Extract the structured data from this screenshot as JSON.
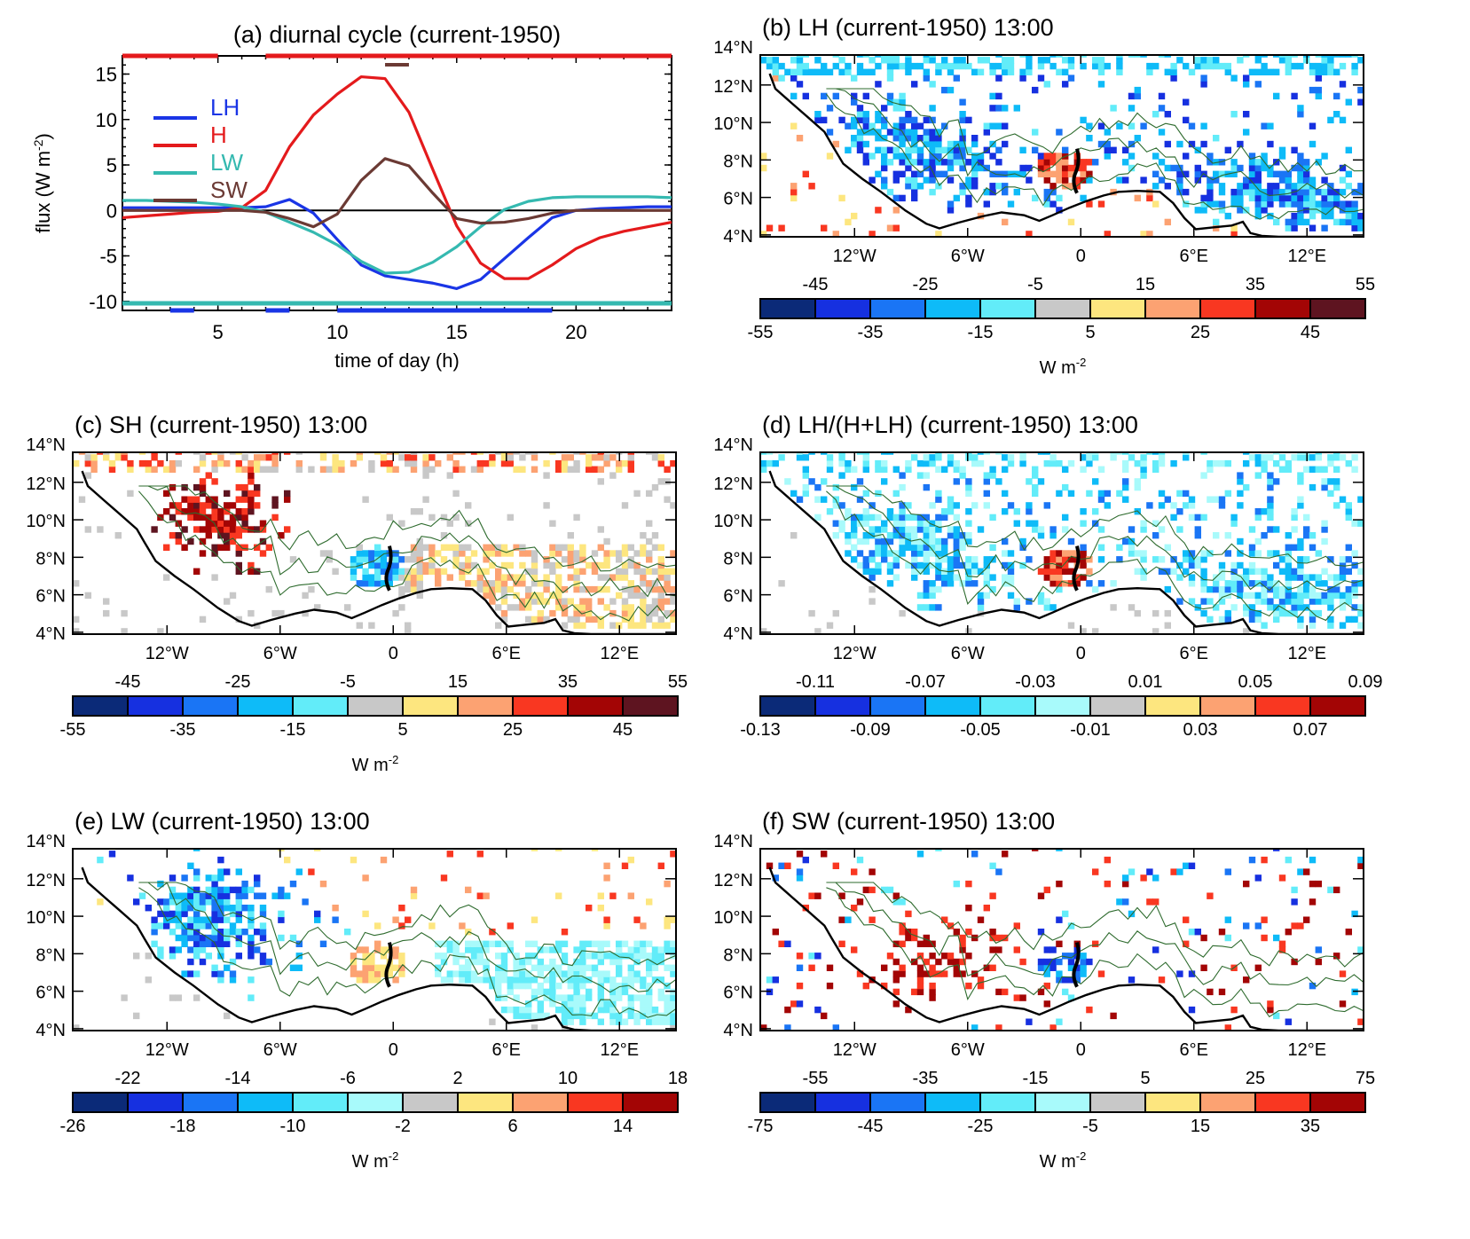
{
  "chart_data": [
    {
      "id": "a",
      "type": "line",
      "title": "(a) diurnal cycle (current-1950)",
      "xlabel": "time of day (h)",
      "ylabel": "flux (W m⁻²)",
      "ylabel_main": "flux (W m",
      "ylabel_exp": "-2",
      "ylabel_close": ")",
      "xlim": [
        1,
        24
      ],
      "ylim": [
        -11,
        17
      ],
      "xticks": [
        5,
        10,
        15,
        20
      ],
      "yticks": [
        -10,
        -5,
        0,
        5,
        10,
        15
      ],
      "x": [
        1,
        2,
        3,
        4,
        5,
        6,
        7,
        8,
        9,
        10,
        11,
        12,
        13,
        14,
        15,
        16,
        17,
        18,
        19,
        20,
        21,
        22,
        23,
        24
      ],
      "series": [
        {
          "name": "LH",
          "color": "#1a35e6",
          "values": [
            0.3,
            0.3,
            0.3,
            0.3,
            0.3,
            0.3,
            0.4,
            1.2,
            -0.3,
            -3.2,
            -6.0,
            -7.2,
            -7.6,
            -8.0,
            -8.6,
            -7.6,
            -5.3,
            -3.0,
            -0.8,
            0.0,
            0.2,
            0.3,
            0.4,
            0.4
          ]
        },
        {
          "name": "H",
          "color": "#e41a1c",
          "values": [
            -0.8,
            -0.6,
            -0.4,
            -0.2,
            -0.1,
            0.3,
            2.2,
            7.0,
            10.5,
            12.8,
            14.7,
            14.5,
            10.8,
            4.5,
            -1.7,
            -5.8,
            -7.5,
            -7.5,
            -6.0,
            -4.2,
            -3.0,
            -2.3,
            -1.8,
            -1.3
          ]
        },
        {
          "name": "LW",
          "color": "#35b9b0",
          "values": [
            1.1,
            1.1,
            1.0,
            0.9,
            0.7,
            0.4,
            -0.2,
            -1.3,
            -2.4,
            -3.8,
            -5.6,
            -6.9,
            -6.8,
            -5.7,
            -4.0,
            -1.8,
            0.1,
            1.0,
            1.4,
            1.5,
            1.5,
            1.5,
            1.5,
            1.4
          ]
        },
        {
          "name": "SW",
          "color": "#6b3a34",
          "values": [
            0.0,
            0.0,
            0.0,
            0.0,
            0.0,
            0.0,
            -0.2,
            -0.9,
            -1.8,
            -0.4,
            3.3,
            5.7,
            4.9,
            1.9,
            -0.9,
            -1.4,
            -1.3,
            -0.9,
            -0.3,
            0.0,
            0.0,
            0.0,
            0.0,
            0.0
          ]
        }
      ],
      "zero_line": true,
      "significance_bars": [
        {
          "series": "H",
          "position": "top",
          "color": "#e41a1c",
          "ranges": [
            [
              1,
              5
            ],
            [
              7,
              24
            ]
          ]
        },
        {
          "series": "SW",
          "position": "top",
          "color": "#6b3a34",
          "ranges": [
            [
              12,
              13
            ]
          ]
        },
        {
          "series": "LW",
          "position": "bottom",
          "color": "#35b9b0",
          "ranges": [
            [
              1,
              24
            ]
          ]
        },
        {
          "series": "LH",
          "position": "bottom",
          "color": "#1a35e6",
          "ranges": [
            [
              3,
              4
            ],
            [
              7,
              8
            ],
            [
              10,
              19
            ]
          ]
        }
      ],
      "legend": {
        "placement": "upper-left",
        "entries": [
          "LH",
          "H",
          "LW",
          "SW"
        ]
      }
    },
    {
      "id": "b",
      "type": "heatmap",
      "title": "(b) LH (current-1950) 13:00",
      "lat_ticks": [
        "14°N",
        "12°N",
        "10°N",
        "8°N",
        "6°N",
        "4°N"
      ],
      "lon_ticks": [
        "12°W",
        "6°W",
        "0",
        "6°E",
        "12°E"
      ],
      "colorbar": {
        "upper_labels": [
          "-45",
          "-25",
          "-5",
          "15",
          "35",
          "55"
        ],
        "lower_labels": [
          "-55",
          "-35",
          "-15",
          "5",
          "25",
          "45"
        ],
        "colors": [
          "#0b2a78",
          "#1630e0",
          "#1a75f5",
          "#0ebbf8",
          "#62ecf9",
          "#c8c8c8",
          "#fde67f",
          "#fca272",
          "#f93721",
          "#a30505",
          "#5e1420"
        ],
        "units": "W m",
        "units_exp": "-2"
      },
      "pattern": "lh"
    },
    {
      "id": "c",
      "type": "heatmap",
      "title": "(c) SH (current-1950) 13:00",
      "lat_ticks": [
        "14°N",
        "12°N",
        "10°N",
        "8°N",
        "6°N",
        "4°N"
      ],
      "lon_ticks": [
        "12°W",
        "6°W",
        "0",
        "6°E",
        "12°E"
      ],
      "colorbar": {
        "upper_labels": [
          "-45",
          "-25",
          "-5",
          "15",
          "35",
          "55"
        ],
        "lower_labels": [
          "-55",
          "-35",
          "-15",
          "5",
          "25",
          "45"
        ],
        "colors": [
          "#0b2a78",
          "#1630e0",
          "#1a75f5",
          "#0ebbf8",
          "#62ecf9",
          "#c8c8c8",
          "#fde67f",
          "#fca272",
          "#f93721",
          "#a30505",
          "#5e1420"
        ],
        "units": "W m",
        "units_exp": "-2"
      },
      "pattern": "sh"
    },
    {
      "id": "d",
      "type": "heatmap",
      "title": "(d) LH/(H+LH) (current-1950) 13:00",
      "lat_ticks": [
        "14°N",
        "12°N",
        "10°N",
        "8°N",
        "6°N",
        "4°N"
      ],
      "lon_ticks": [
        "12°W",
        "6°W",
        "0",
        "6°E",
        "12°E"
      ],
      "colorbar": {
        "upper_labels": [
          "-0.11",
          "-0.07",
          "-0.03",
          "0.01",
          "0.05",
          "0.09"
        ],
        "lower_labels": [
          "-0.13",
          "-0.09",
          "-0.05",
          "-0.01",
          "0.03",
          "0.07"
        ],
        "colors": [
          "#0b2a78",
          "#1630e0",
          "#1a75f5",
          "#0ebbf8",
          "#62ecf9",
          "#a8fafb",
          "#c8c8c8",
          "#fde67f",
          "#fca272",
          "#f93721",
          "#a30505"
        ],
        "units": "",
        "units_exp": ""
      },
      "pattern": "ratio"
    },
    {
      "id": "e",
      "type": "heatmap",
      "title": "(e) LW (current-1950) 13:00",
      "lat_ticks": [
        "14°N",
        "12°N",
        "10°N",
        "8°N",
        "6°N",
        "4°N"
      ],
      "lon_ticks": [
        "12°W",
        "6°W",
        "0",
        "6°E",
        "12°E"
      ],
      "colorbar": {
        "upper_labels": [
          "-22",
          "-14",
          "-6",
          "2",
          "10",
          "18"
        ],
        "lower_labels": [
          "-26",
          "-18",
          "-10",
          "-2",
          "6",
          "14"
        ],
        "colors": [
          "#0b2a78",
          "#1630e0",
          "#1a75f5",
          "#0ebbf8",
          "#62ecf9",
          "#a8fafb",
          "#c8c8c8",
          "#fde67f",
          "#fca272",
          "#f93721",
          "#a30505"
        ],
        "units": "W m",
        "units_exp": "-2"
      },
      "pattern": "lw"
    },
    {
      "id": "f",
      "type": "heatmap",
      "title": "(f) SW (current-1950) 13:00",
      "lat_ticks": [
        "14°N",
        "12°N",
        "10°N",
        "8°N",
        "6°N",
        "4°N"
      ],
      "lon_ticks": [
        "12°W",
        "6°W",
        "0",
        "6°E",
        "12°E"
      ],
      "colorbar": {
        "upper_labels": [
          "-55",
          "-35",
          "-15",
          "5",
          "25",
          "75"
        ],
        "lower_labels": [
          "-75",
          "-45",
          "-25",
          "-5",
          "15",
          "35"
        ],
        "colors": [
          "#0b2a78",
          "#1630e0",
          "#1a75f5",
          "#0ebbf8",
          "#62ecf9",
          "#a8fafb",
          "#c8c8c8",
          "#fde67f",
          "#fca272",
          "#f93721",
          "#a30505"
        ],
        "units": "W m",
        "units_exp": "-2"
      },
      "pattern": "sw"
    }
  ]
}
